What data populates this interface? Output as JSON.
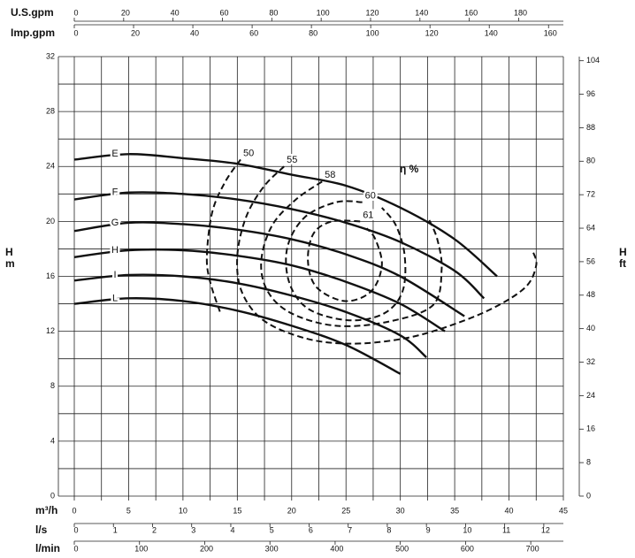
{
  "chart_data": {
    "type": "line",
    "xlabel": "m³/h",
    "ylabel": [
      "H",
      "m"
    ],
    "y2label": [
      "H",
      "ft"
    ],
    "annotation": "η %",
    "xlim": [
      0,
      45
    ],
    "xticks": [
      0,
      5,
      10,
      15,
      20,
      25,
      30,
      35,
      40,
      45
    ],
    "xgrid": [
      0,
      2.5,
      5,
      7.5,
      10,
      12.5,
      15,
      17.5,
      20,
      22.5,
      25,
      27.5,
      30,
      32.5,
      35,
      37.5,
      40,
      42.5,
      45
    ],
    "ylim": [
      0,
      32
    ],
    "yticks": [
      0,
      4,
      8,
      12,
      16,
      20,
      24,
      28,
      32
    ],
    "ygrid": [
      0,
      2,
      4,
      6,
      8,
      10,
      12,
      14,
      16,
      18,
      20,
      22,
      24,
      26,
      28,
      30,
      32
    ],
    "y2lim": [
      0,
      104.99
    ],
    "y2ticks": [
      0,
      8,
      16,
      24,
      32,
      40,
      48,
      56,
      64,
      72,
      80,
      88,
      96,
      104
    ],
    "top_axes": [
      {
        "label": "U.S.gpm",
        "lim": [
          0,
          198.1
        ],
        "ticks": [
          0,
          20,
          40,
          60,
          80,
          100,
          120,
          140,
          160,
          180
        ]
      },
      {
        "label": "Imp.gpm",
        "lim": [
          0,
          165
        ],
        "ticks": [
          0,
          20,
          40,
          60,
          80,
          100,
          120,
          140,
          160
        ]
      }
    ],
    "bottom_axes": [
      {
        "label": "l/s",
        "lim": [
          0,
          12.5
        ],
        "ticks": [
          0,
          1,
          2,
          3,
          4,
          5,
          6,
          7,
          8,
          9,
          10,
          11,
          12
        ]
      },
      {
        "label": "l/min",
        "lim": [
          0,
          750
        ],
        "ticks": [
          0,
          100,
          200,
          300,
          400,
          500,
          600,
          700
        ]
      }
    ],
    "series": [
      {
        "name": "E",
        "color": "#111111",
        "x": [
          0,
          5,
          10,
          15,
          20,
          25,
          30,
          35,
          38.9
        ],
        "values": [
          24.5,
          24.9,
          24.6,
          24.2,
          23.4,
          22.6,
          21.0,
          18.7,
          16.0
        ]
      },
      {
        "name": "F",
        "color": "#111111",
        "x": [
          0,
          5,
          10,
          15,
          20,
          25,
          30,
          35,
          37.7
        ],
        "values": [
          21.6,
          22.1,
          22.0,
          21.6,
          20.9,
          19.9,
          18.5,
          16.4,
          14.4
        ]
      },
      {
        "name": "G",
        "color": "#111111",
        "x": [
          0,
          5,
          10,
          15,
          20,
          25,
          30,
          35.9
        ],
        "values": [
          19.3,
          19.9,
          19.8,
          19.4,
          18.7,
          17.6,
          16.0,
          13.1
        ]
      },
      {
        "name": "H",
        "color": "#111111",
        "x": [
          0,
          5,
          10,
          15,
          20,
          25,
          30,
          34.1
        ],
        "values": [
          17.4,
          17.9,
          17.9,
          17.5,
          16.8,
          15.6,
          14.0,
          12.0
        ]
      },
      {
        "name": "I",
        "color": "#111111",
        "x": [
          0,
          5,
          10,
          15,
          20,
          25,
          30,
          32.4
        ],
        "values": [
          15.7,
          16.1,
          16.0,
          15.5,
          14.6,
          13.4,
          11.7,
          10.1
        ]
      },
      {
        "name": "L",
        "color": "#111111",
        "x": [
          0,
          5,
          10,
          15,
          20,
          25,
          30
        ],
        "values": [
          14.0,
          14.4,
          14.2,
          13.5,
          12.4,
          11.0,
          8.9
        ]
      }
    ],
    "contours": [
      {
        "name": "50",
        "color": "#111111",
        "x": [
          15.3,
          13.9,
          12.7,
          12.2,
          12.5,
          13.5
        ],
        "values": [
          24.5,
          22.9,
          20.7,
          17.5,
          15.6,
          13.2
        ]
      },
      {
        "name": "55",
        "color": "#111111",
        "x": [
          19.3,
          17.4,
          15.8,
          15.0,
          15.4,
          17.4,
          21.2,
          25.3,
          29.8,
          33.8,
          38.3,
          41.5,
          42.5,
          42.2
        ],
        "values": [
          24.0,
          22.5,
          20.3,
          17.5,
          14.9,
          12.8,
          11.5,
          11.1,
          11.4,
          12.2,
          13.6,
          15.2,
          16.8,
          17.8
        ]
      },
      {
        "name": "58",
        "color": "#111111",
        "x": [
          22.8,
          20.4,
          18.2,
          17.2,
          17.8,
          20.0,
          24.1,
          28.9,
          33.0,
          33.8,
          33.4,
          32.6
        ],
        "values": [
          22.9,
          21.6,
          19.7,
          17.1,
          14.9,
          13.3,
          12.4,
          12.7,
          13.9,
          16.5,
          18.7,
          20.2
        ]
      },
      {
        "name": "60",
        "color": "#111111",
        "x": [
          26.5,
          24.1,
          21.2,
          19.6,
          19.8,
          21.6,
          25.3,
          28.5,
          30.2,
          30.4,
          29.6,
          28.3
        ],
        "values": [
          21.4,
          21.4,
          20.3,
          18.1,
          15.5,
          13.6,
          12.8,
          13.3,
          14.9,
          17.5,
          19.7,
          21.0
        ]
      },
      {
        "name": "61",
        "color": "#111111",
        "x": [
          26.3,
          23.7,
          22.0,
          21.5,
          22.3,
          24.9,
          27.3,
          28.3,
          27.7,
          26.9
        ],
        "values": [
          20.0,
          20.0,
          19.1,
          17.1,
          15.2,
          14.2,
          14.9,
          16.8,
          18.7,
          19.5
        ]
      }
    ]
  }
}
